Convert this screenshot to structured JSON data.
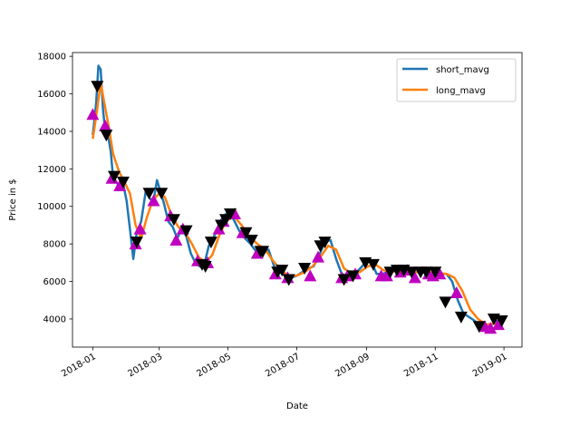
{
  "chart_data": {
    "type": "line",
    "xlabel": "Date",
    "ylabel": "Price in $",
    "x_range": [
      "2017-12-14",
      "2019-01-17"
    ],
    "ylim": [
      2500,
      18200
    ],
    "x_ticks": [
      {
        "date": "2018-01-01",
        "label": "2018-01"
      },
      {
        "date": "2018-03-01",
        "label": "2018-03"
      },
      {
        "date": "2018-05-01",
        "label": "2018-05"
      },
      {
        "date": "2018-07-01",
        "label": "2018-07"
      },
      {
        "date": "2018-09-01",
        "label": "2018-09"
      },
      {
        "date": "2018-11-01",
        "label": "2018-11"
      },
      {
        "date": "2019-01-01",
        "label": "2019-01"
      }
    ],
    "y_ticks": [
      4000,
      6000,
      8000,
      10000,
      12000,
      14000,
      16000,
      18000
    ],
    "legend": {
      "position": "top-right"
    },
    "colors": {
      "short_mavg": "#1f77b4",
      "long_mavg": "#ff7f0e",
      "buy_signal": "#bf00bf",
      "sell_signal": "#000000"
    },
    "series": [
      {
        "name": "short_mavg",
        "x": [
          "2018-01-01",
          "2018-01-04",
          "2018-01-06",
          "2018-01-08",
          "2018-01-10",
          "2018-01-12",
          "2018-01-15",
          "2018-01-17",
          "2018-01-19",
          "2018-01-22",
          "2018-01-25",
          "2018-01-28",
          "2018-01-31",
          "2018-02-03",
          "2018-02-06",
          "2018-02-09",
          "2018-02-13",
          "2018-02-17",
          "2018-02-21",
          "2018-02-24",
          "2018-02-27",
          "2018-03-02",
          "2018-03-05",
          "2018-03-09",
          "2018-03-13",
          "2018-03-17",
          "2018-03-21",
          "2018-03-25",
          "2018-03-29",
          "2018-04-02",
          "2018-04-06",
          "2018-04-10",
          "2018-04-14",
          "2018-04-18",
          "2018-04-22",
          "2018-04-26",
          "2018-05-01",
          "2018-05-06",
          "2018-05-11",
          "2018-05-16",
          "2018-05-21",
          "2018-05-26",
          "2018-06-01",
          "2018-06-06",
          "2018-06-11",
          "2018-06-16",
          "2018-06-21",
          "2018-06-26",
          "2018-07-01",
          "2018-07-06",
          "2018-07-11",
          "2018-07-16",
          "2018-07-21",
          "2018-07-26",
          "2018-07-31",
          "2018-08-05",
          "2018-08-10",
          "2018-08-15",
          "2018-08-20",
          "2018-08-25",
          "2018-08-31",
          "2018-09-05",
          "2018-09-10",
          "2018-09-15",
          "2018-09-20",
          "2018-09-25",
          "2018-10-01",
          "2018-10-06",
          "2018-10-11",
          "2018-10-16",
          "2018-10-21",
          "2018-10-26",
          "2018-11-01",
          "2018-11-06",
          "2018-11-11",
          "2018-11-16",
          "2018-11-21",
          "2018-11-26",
          "2018-12-01",
          "2018-12-06",
          "2018-12-11",
          "2018-12-16",
          "2018-12-21",
          "2018-12-26",
          "2018-12-31"
        ],
        "values": [
          13800,
          15500,
          17500,
          17300,
          15200,
          14000,
          13600,
          12900,
          11500,
          11300,
          11000,
          11200,
          10300,
          8800,
          7200,
          8600,
          9200,
          10800,
          10400,
          10300,
          11400,
          10800,
          10200,
          9200,
          8900,
          8300,
          8800,
          8400,
          7500,
          7000,
          6800,
          6900,
          7900,
          8300,
          8900,
          9400,
          9700,
          9300,
          8700,
          8300,
          8000,
          7600,
          7500,
          7700,
          6800,
          6500,
          6300,
          6200,
          6300,
          6500,
          6700,
          6800,
          7400,
          8100,
          8200,
          7200,
          6400,
          6300,
          6400,
          6600,
          7000,
          7100,
          6400,
          6400,
          6500,
          6600,
          6600,
          6600,
          6500,
          6500,
          6500,
          6500,
          6400,
          6400,
          6400,
          6000,
          5000,
          4300,
          4100,
          3900,
          3600,
          3500,
          3700,
          3900,
          3800
        ]
      },
      {
        "name": "long_mavg",
        "x": [
          "2018-01-01",
          "2018-01-05",
          "2018-01-08",
          "2018-01-11",
          "2018-01-15",
          "2018-01-19",
          "2018-01-24",
          "2018-01-29",
          "2018-02-03",
          "2018-02-08",
          "2018-02-13",
          "2018-02-18",
          "2018-02-23",
          "2018-03-01",
          "2018-03-06",
          "2018-03-12",
          "2018-03-18",
          "2018-03-24",
          "2018-03-30",
          "2018-04-05",
          "2018-04-11",
          "2018-04-17",
          "2018-04-23",
          "2018-04-29",
          "2018-05-06",
          "2018-05-13",
          "2018-05-20",
          "2018-05-27",
          "2018-06-03",
          "2018-06-10",
          "2018-06-17",
          "2018-06-24",
          "2018-07-01",
          "2018-07-08",
          "2018-07-15",
          "2018-07-22",
          "2018-07-29",
          "2018-08-05",
          "2018-08-12",
          "2018-08-19",
          "2018-08-26",
          "2018-09-02",
          "2018-09-09",
          "2018-09-16",
          "2018-09-23",
          "2018-09-30",
          "2018-10-07",
          "2018-10-14",
          "2018-10-21",
          "2018-10-28",
          "2018-11-04",
          "2018-11-11",
          "2018-11-18",
          "2018-11-25",
          "2018-12-02",
          "2018-12-09",
          "2018-12-16",
          "2018-12-23",
          "2018-12-31"
        ],
        "values": [
          13600,
          15200,
          16600,
          15600,
          14300,
          12800,
          11900,
          11300,
          10700,
          9000,
          8300,
          9400,
          10300,
          10700,
          10500,
          9500,
          8900,
          8600,
          8000,
          7300,
          7000,
          7400,
          8400,
          9200,
          9500,
          9000,
          8400,
          8000,
          7700,
          7100,
          6600,
          6300,
          6300,
          6500,
          6800,
          7300,
          7900,
          7700,
          6700,
          6400,
          6500,
          6800,
          6900,
          6600,
          6500,
          6600,
          6600,
          6500,
          6500,
          6500,
          6450,
          6400,
          6200,
          5500,
          4500,
          4000,
          3700,
          3750,
          3800
        ]
      }
    ],
    "buy_signals": {
      "x": [
        "2018-01-01",
        "2018-01-12",
        "2018-01-18",
        "2018-01-25",
        "2018-02-08",
        "2018-02-12",
        "2018-02-24",
        "2018-03-11",
        "2018-03-16",
        "2018-03-22",
        "2018-04-04",
        "2018-04-13",
        "2018-04-23",
        "2018-04-27",
        "2018-05-07",
        "2018-05-14",
        "2018-05-27",
        "2018-06-12",
        "2018-06-23",
        "2018-07-13",
        "2018-07-20",
        "2018-08-10",
        "2018-08-15",
        "2018-08-22",
        "2018-09-14",
        "2018-09-19",
        "2018-10-01",
        "2018-10-07",
        "2018-10-14",
        "2018-10-26",
        "2018-10-30",
        "2018-11-05",
        "2018-11-20",
        "2018-12-15",
        "2018-12-20",
        "2018-12-27"
      ],
      "values": [
        14900,
        14300,
        11500,
        11100,
        8000,
        8800,
        10300,
        9500,
        8200,
        8800,
        7100,
        7000,
        8800,
        9200,
        9600,
        8600,
        7500,
        6400,
        6200,
        6300,
        7300,
        6200,
        6300,
        6400,
        6300,
        6300,
        6500,
        6600,
        6200,
        6400,
        6300,
        6400,
        5400,
        3600,
        3500,
        3700
      ]
    },
    "sell_signals": {
      "x": [
        "2018-01-05",
        "2018-01-13",
        "2018-01-20",
        "2018-01-28",
        "2018-02-09",
        "2018-02-20",
        "2018-03-03",
        "2018-03-14",
        "2018-03-25",
        "2018-04-08",
        "2018-04-11",
        "2018-04-16",
        "2018-04-25",
        "2018-04-29",
        "2018-05-03",
        "2018-05-17",
        "2018-05-22",
        "2018-05-30",
        "2018-06-01",
        "2018-06-14",
        "2018-06-18",
        "2018-06-24",
        "2018-07-08",
        "2018-07-22",
        "2018-07-26",
        "2018-08-12",
        "2018-08-20",
        "2018-08-31",
        "2018-09-07",
        "2018-09-22",
        "2018-09-28",
        "2018-10-04",
        "2018-10-11",
        "2018-10-19",
        "2018-10-24",
        "2018-11-01",
        "2018-11-10",
        "2018-11-24",
        "2018-12-10",
        "2018-12-23",
        "2018-12-30"
      ],
      "values": [
        16400,
        13800,
        11600,
        11300,
        8100,
        10700,
        10700,
        9300,
        8700,
        6900,
        6800,
        8100,
        9000,
        9300,
        9600,
        8600,
        8200,
        7600,
        7600,
        6500,
        6600,
        6100,
        6700,
        7900,
        8100,
        6100,
        6300,
        7000,
        6900,
        6500,
        6600,
        6600,
        6500,
        6500,
        6500,
        6500,
        4900,
        4100,
        3600,
        4000,
        3900
      ]
    }
  }
}
